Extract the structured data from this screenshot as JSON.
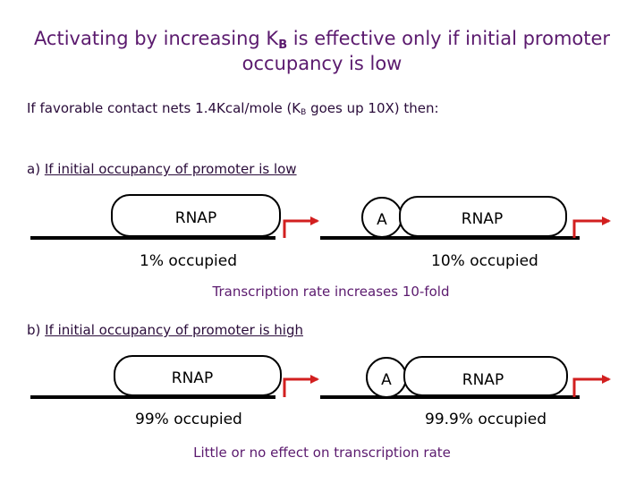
{
  "title": {
    "line1_prefix": "Activating by increasing K",
    "line1_subscript": "B",
    "line1_suffix": " is effective only if initial promoter",
    "line2": "occupancy is low"
  },
  "subtitle": {
    "prefix": "If favorable contact nets 1.4Kcal/mole (K",
    "subscript": "B",
    "suffix": " goes up 10X) then:"
  },
  "section_a": {
    "prefix": "a) ",
    "label": "If initial occupancy of promoter is low"
  },
  "section_b": {
    "prefix": "b) ",
    "label": "If initial occupancy of promoter is high"
  },
  "rnap_label": "RNAP",
  "activator_label": "A",
  "occupancy": {
    "a_left": "1% occupied",
    "a_right": "10% occupied",
    "b_left": "99% occupied",
    "b_right": "99.9% occupied"
  },
  "results": {
    "a": "Transcription rate increases 10-fold",
    "b": "Little or no effect on transcription rate"
  },
  "colors": {
    "title": "#5b1a6e",
    "arrow": "#d21f1f",
    "text_dark": "#2a0c3a"
  }
}
